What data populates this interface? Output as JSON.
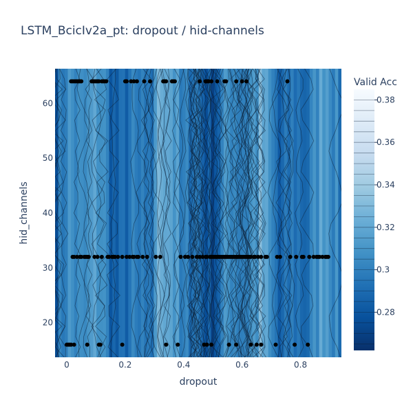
{
  "chart_data": {
    "type": "contour",
    "title": "LSTM_BcicIv2a_pt: dropout / hid-channels",
    "xlabel": "dropout",
    "ylabel": "hid_channels",
    "colorbar_title": "Valid Acc",
    "xlim": [
      -0.04,
      0.94
    ],
    "ylim": [
      13.7,
      66.3
    ],
    "x_ticks": [
      0,
      0.2,
      0.4,
      0.6,
      0.8
    ],
    "x_tick_labels": [
      "0",
      "0.2",
      "0.4",
      "0.6",
      "0.8"
    ],
    "y_ticks": [
      20,
      30,
      40,
      50,
      60
    ],
    "y_tick_labels": [
      "20",
      "30",
      "40",
      "50",
      "60"
    ],
    "zlim": [
      0.262,
      0.385
    ],
    "colorbar_ticks": [
      0.28,
      0.3,
      0.32,
      0.34,
      0.36,
      0.38
    ],
    "colorbar_tick_labels": [
      "0.28",
      "0.3",
      "0.32",
      "0.34",
      "0.36",
      "0.38"
    ],
    "colorscale": [
      "#08306b",
      "#08519c",
      "#2171b5",
      "#4292c6",
      "#6baed6",
      "#9ecae1",
      "#c6dbef",
      "#deebf7",
      "#f7fbff"
    ],
    "trials": {
      "hid_channels_64": [
        0.015,
        0.02,
        0.025,
        0.03,
        0.035,
        0.04,
        0.045,
        0.05,
        0.085,
        0.09,
        0.095,
        0.1,
        0.105,
        0.11,
        0.12,
        0.125,
        0.13,
        0.135,
        0.2,
        0.205,
        0.22,
        0.23,
        0.24,
        0.265,
        0.285,
        0.33,
        0.335,
        0.34,
        0.36,
        0.365,
        0.37,
        0.455,
        0.475,
        0.48,
        0.485,
        0.495,
        0.515,
        0.54,
        0.545,
        0.58,
        0.6,
        0.615,
        0.755
      ],
      "hid_channels_32": [
        0.02,
        0.025,
        0.035,
        0.045,
        0.05,
        0.06,
        0.065,
        0.07,
        0.075,
        0.095,
        0.105,
        0.12,
        0.14,
        0.145,
        0.155,
        0.16,
        0.165,
        0.175,
        0.19,
        0.205,
        0.215,
        0.225,
        0.23,
        0.24,
        0.245,
        0.26,
        0.275,
        0.305,
        0.32,
        0.39,
        0.405,
        0.415,
        0.43,
        0.445,
        0.455,
        0.465,
        0.475,
        0.48,
        0.49,
        0.495,
        0.5,
        0.505,
        0.51,
        0.515,
        0.52,
        0.525,
        0.53,
        0.535,
        0.54,
        0.545,
        0.55,
        0.555,
        0.56,
        0.565,
        0.57,
        0.575,
        0.58,
        0.585,
        0.59,
        0.595,
        0.6,
        0.605,
        0.61,
        0.615,
        0.62,
        0.625,
        0.63,
        0.64,
        0.645,
        0.655,
        0.665,
        0.68,
        0.685,
        0.72,
        0.73,
        0.765,
        0.785,
        0.805,
        0.81,
        0.83,
        0.845,
        0.855,
        0.86,
        0.865,
        0.875,
        0.885,
        0.89,
        0.895
      ],
      "hid_channels_16": [
        0,
        0.005,
        0.01,
        0.015,
        0.025,
        0.07,
        0.11,
        0.115,
        0.19,
        0.34,
        0.38,
        0.47,
        0.48,
        0.495,
        0.555,
        0.58,
        0.63,
        0.65,
        0.665,
        0.715,
        0.78,
        0.825
      ]
    }
  }
}
